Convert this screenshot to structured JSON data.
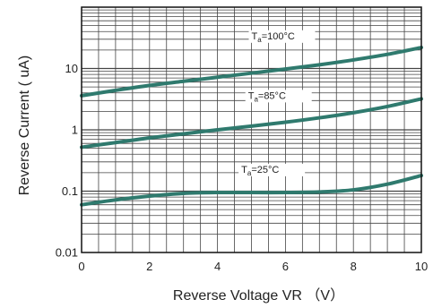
{
  "chart_data": {
    "type": "line",
    "xlabel": "Reverse Voltage VR （V）",
    "ylabel": "Reverse Current ( uA)",
    "xlim": [
      0,
      10
    ],
    "ylim": [
      0.01,
      100
    ],
    "yscale": "log",
    "x_ticks": [
      "0",
      "2",
      "4",
      "6",
      "8",
      "10"
    ],
    "y_ticks": [
      "0.01",
      "0.1",
      "1",
      "10"
    ],
    "grid": true,
    "line_color": "#2f7a6e",
    "series": [
      {
        "name": "Ta=100°C",
        "label_main": "T",
        "label_sub": "a",
        "label_rest": "=100°C",
        "label_at": [
          5.0,
          30
        ],
        "x": [
          0,
          1,
          2,
          3,
          4,
          5,
          6,
          7,
          8,
          9,
          10
        ],
        "values": [
          3.6,
          4.4,
          5.3,
          6.2,
          7.2,
          8.4,
          9.8,
          11.5,
          13.8,
          17,
          22
        ]
      },
      {
        "name": "Ta=85°C",
        "label_main": "T",
        "label_sub": "a",
        "label_rest": "=85°C",
        "label_at": [
          4.9,
          3.2
        ],
        "x": [
          0,
          1,
          2,
          3,
          4,
          5,
          6,
          7,
          8,
          9,
          10
        ],
        "values": [
          0.52,
          0.62,
          0.74,
          0.86,
          1.0,
          1.15,
          1.33,
          1.57,
          1.9,
          2.4,
          3.2
        ]
      },
      {
        "name": "Ta=25°C",
        "label_main": "T",
        "label_sub": "a",
        "label_rest": "=25°C",
        "label_at": [
          4.7,
          0.2
        ],
        "x": [
          0,
          1,
          2,
          3,
          4,
          5,
          6,
          7,
          8,
          9,
          10
        ],
        "values": [
          0.06,
          0.072,
          0.083,
          0.092,
          0.095,
          0.095,
          0.095,
          0.097,
          0.105,
          0.13,
          0.18
        ]
      }
    ]
  }
}
